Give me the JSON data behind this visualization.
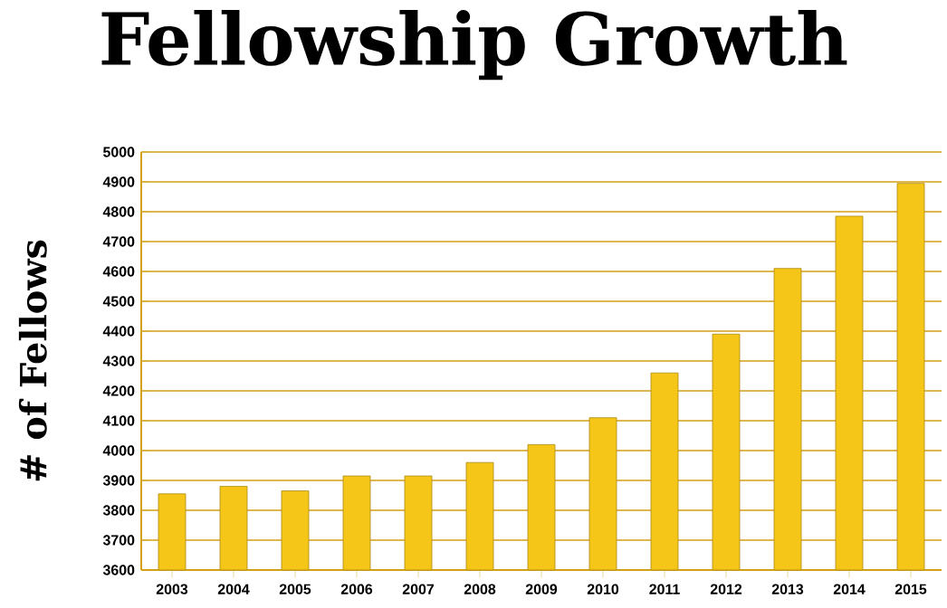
{
  "chart_data": {
    "type": "bar",
    "title": "Fellowship Growth",
    "ylabel": "# of Fellows",
    "categories": [
      "2003",
      "2004",
      "2005",
      "2006",
      "2007",
      "2008",
      "2009",
      "2010",
      "2011",
      "2012",
      "2013",
      "2014",
      "2015"
    ],
    "values": [
      3855,
      3880,
      3865,
      3915,
      3915,
      3960,
      4020,
      4110,
      4260,
      4390,
      4610,
      4785,
      4895
    ],
    "color": "#f5c518",
    "ylim": [
      3600,
      5000
    ],
    "yticks": [
      3600,
      3700,
      3800,
      3900,
      4000,
      4100,
      4200,
      4300,
      4400,
      4500,
      4600,
      4700,
      4800,
      4900,
      5000
    ],
    "grid": "y"
  }
}
